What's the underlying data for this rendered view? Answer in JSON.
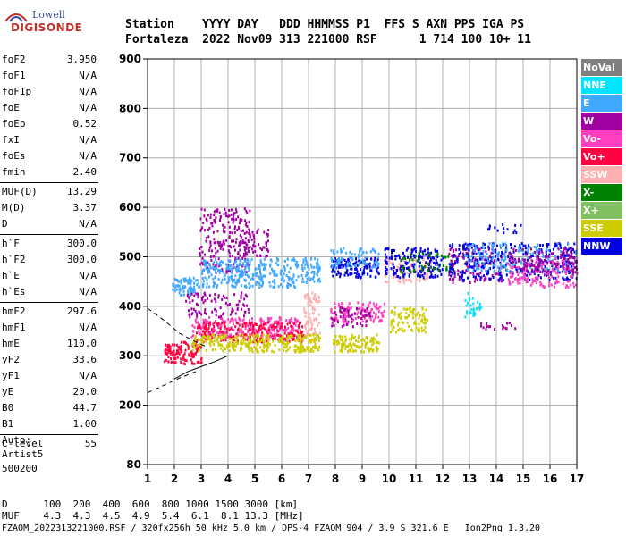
{
  "logo": {
    "top": "Lowell",
    "bottom": "DIGISONDE"
  },
  "header": {
    "row1": "Station    YYYY DAY   DDD HHMMSS P1  FFS S AXN PPS IGA PS",
    "row2": "Fortaleza  2022 Nov09 313 221000 RSF      1 714 100 10+ 11"
  },
  "params": [
    {
      "label": "foF2",
      "value": "3.950"
    },
    {
      "label": "foF1",
      "value": "N/A"
    },
    {
      "label": "foF1p",
      "value": "N/A"
    },
    {
      "label": "foE",
      "value": "N/A"
    },
    {
      "label": "foEp",
      "value": "0.52"
    },
    {
      "label": "fxI",
      "value": "N/A"
    },
    {
      "label": "foEs",
      "value": "N/A"
    },
    {
      "label": "fmin",
      "value": "2.40"
    },
    {
      "label": "MUF(D)",
      "value": "13.29"
    },
    {
      "label": "M(D)",
      "value": "3.37"
    },
    {
      "label": "D",
      "value": "N/A"
    },
    {
      "label": "h`F",
      "value": "300.0"
    },
    {
      "label": "h`F2",
      "value": "300.0"
    },
    {
      "label": "h`E",
      "value": "N/A"
    },
    {
      "label": "h`Es",
      "value": "N/A"
    },
    {
      "label": "hmF2",
      "value": "297.6"
    },
    {
      "label": "hmF1",
      "value": "N/A"
    },
    {
      "label": "hmE",
      "value": "110.0"
    },
    {
      "label": "yF2",
      "value": "33.6"
    },
    {
      "label": "yF1",
      "value": "N/A"
    },
    {
      "label": "yE",
      "value": "20.0"
    },
    {
      "label": "B0",
      "value": "44.7"
    },
    {
      "label": "B1",
      "value": "1.00"
    },
    {
      "label": "C-level",
      "value": "55"
    }
  ],
  "auto": {
    "line1": "Auto:",
    "line2": "Artist5",
    "line3": "500200"
  },
  "legend": [
    {
      "label": "NoVal",
      "color": "#7f7f7f"
    },
    {
      "label": "NNE",
      "color": "#00e5ff"
    },
    {
      "label": "E",
      "color": "#40a8ff"
    },
    {
      "label": "W",
      "color": "#a000a0"
    },
    {
      "label": "Vo-",
      "color": "#ff3fbf"
    },
    {
      "label": "Vo+",
      "color": "#ff0040"
    },
    {
      "label": "SSW",
      "color": "#ffb0b0"
    },
    {
      "label": "X-",
      "color": "#008000"
    },
    {
      "label": "X+",
      "color": "#80c060"
    },
    {
      "label": "SSE",
      "color": "#cccc00"
    },
    {
      "label": "NNW",
      "color": "#0000e0"
    }
  ],
  "bottom": {
    "row_d": "D      100  200  400  600  800 1000 1500 3000 [km]",
    "row_muf": "MUF    4.3  4.3  4.5  4.9  5.4  6.1  8.1 13.3 [MHz]",
    "footer": "FZAOM_2022313221000.RSF / 320fx256h 50 kHz 5.0 km / DPS-4 FZAOM 904 / 3.9 S 321.6 E   Ion2Png 1.3.20"
  },
  "chart_data": {
    "type": "scatter",
    "xlim": [
      1,
      17
    ],
    "ylim": [
      80,
      900
    ],
    "x_ticks": [
      1,
      2,
      3,
      4,
      5,
      6,
      7,
      8,
      9,
      10,
      11,
      12,
      13,
      14,
      15,
      16,
      17
    ],
    "x_tick_labels": [
      "1",
      "2",
      "3",
      "4",
      "5",
      "6",
      "7",
      "8",
      "9",
      "10",
      "11",
      "12",
      "13",
      "14",
      "15",
      "16",
      "17"
    ],
    "y_ticks": [
      80,
      200,
      300,
      400,
      500,
      600,
      700,
      800,
      900
    ],
    "y_tick_labels": [
      "80",
      "200",
      "300",
      "400",
      "500",
      "600",
      "700",
      "800",
      "900"
    ],
    "grid": true,
    "legend_position": "right",
    "clusters": [
      {
        "color": "#40a8ff",
        "x": [
          1.9,
          2.9
        ],
        "y": [
          425,
          460
        ],
        "n": 80
      },
      {
        "color": "#a000a0",
        "x": [
          2.9,
          4.8
        ],
        "y": [
          470,
          600
        ],
        "n": 220
      },
      {
        "color": "#40a8ff",
        "x": [
          3.0,
          5.4
        ],
        "y": [
          440,
          500
        ],
        "n": 220
      },
      {
        "color": "#a000a0",
        "x": [
          4.5,
          5.5
        ],
        "y": [
          500,
          560
        ],
        "n": 60
      },
      {
        "color": "#40a8ff",
        "x": [
          5.5,
          6.6
        ],
        "y": [
          440,
          500
        ],
        "n": 90
      },
      {
        "color": "#ff3fbf",
        "x": [
          2.6,
          6.6
        ],
        "y": [
          340,
          380
        ],
        "n": 250
      },
      {
        "color": "#ff0040",
        "x": [
          1.6,
          3.0
        ],
        "y": [
          285,
          330
        ],
        "n": 120
      },
      {
        "color": "#ff0040",
        "x": [
          2.8,
          6.8
        ],
        "y": [
          330,
          370
        ],
        "n": 200
      },
      {
        "color": "#cccc00",
        "x": [
          2.6,
          6.8
        ],
        "y": [
          310,
          345
        ],
        "n": 250
      },
      {
        "color": "#a000a0",
        "x": [
          2.4,
          4.8
        ],
        "y": [
          380,
          430
        ],
        "n": 90
      },
      {
        "color": "#ffb0b0",
        "x": [
          6.8,
          7.4
        ],
        "y": [
          330,
          430
        ],
        "n": 80
      },
      {
        "color": "#cccc00",
        "x": [
          6.6,
          7.4
        ],
        "y": [
          310,
          345
        ],
        "n": 60
      },
      {
        "color": "#40a8ff",
        "x": [
          6.7,
          7.4
        ],
        "y": [
          450,
          500
        ],
        "n": 60
      },
      {
        "color": "#0000e0",
        "x": [
          7.8,
          9.6
        ],
        "y": [
          460,
          500
        ],
        "n": 120
      },
      {
        "color": "#40a8ff",
        "x": [
          7.8,
          9.6
        ],
        "y": [
          480,
          520
        ],
        "n": 80
      },
      {
        "color": "#ff3fbf",
        "x": [
          7.8,
          9.8
        ],
        "y": [
          370,
          410
        ],
        "n": 110
      },
      {
        "color": "#cccc00",
        "x": [
          7.9,
          9.6
        ],
        "y": [
          310,
          345
        ],
        "n": 120
      },
      {
        "color": "#a000a0",
        "x": [
          7.8,
          9.3
        ],
        "y": [
          360,
          400
        ],
        "n": 60
      },
      {
        "color": "#cccc00",
        "x": [
          10.0,
          11.4
        ],
        "y": [
          350,
          400
        ],
        "n": 100
      },
      {
        "color": "#ffb0b0",
        "x": [
          9.8,
          11.6
        ],
        "y": [
          450,
          500
        ],
        "n": 100
      },
      {
        "color": "#0000e0",
        "x": [
          9.8,
          12.0
        ],
        "y": [
          460,
          520
        ],
        "n": 160
      },
      {
        "color": "#008000",
        "x": [
          10.4,
          12.4
        ],
        "y": [
          470,
          510
        ],
        "n": 50
      },
      {
        "color": "#a000a0",
        "x": [
          12.2,
          14.2
        ],
        "y": [
          450,
          520
        ],
        "n": 120
      },
      {
        "color": "#0000e0",
        "x": [
          12.2,
          17.0
        ],
        "y": [
          455,
          530
        ],
        "n": 320
      },
      {
        "color": "#40a8ff",
        "x": [
          12.8,
          17.0
        ],
        "y": [
          470,
          530
        ],
        "n": 180
      },
      {
        "color": "#ff3fbf",
        "x": [
          14.4,
          17.0
        ],
        "y": [
          440,
          500
        ],
        "n": 140
      },
      {
        "color": "#a000a0",
        "x": [
          14.4,
          17.0
        ],
        "y": [
          470,
          520
        ],
        "n": 120
      },
      {
        "color": "#00e5ff",
        "x": [
          12.8,
          13.4
        ],
        "y": [
          380,
          430
        ],
        "n": 30
      },
      {
        "color": "#a000a0",
        "x": [
          13.4,
          14.8
        ],
        "y": [
          355,
          370
        ],
        "n": 20
      },
      {
        "color": "#0000e0",
        "x": [
          13.4,
          15.0
        ],
        "y": [
          550,
          570
        ],
        "n": 15
      }
    ],
    "lines": [
      {
        "name": "profile",
        "color": "#000000",
        "dash": false,
        "points": [
          [
            2.0,
            253
          ],
          [
            2.5,
            268
          ],
          [
            3.0,
            278
          ],
          [
            3.5,
            288
          ],
          [
            4.0,
            300
          ]
        ]
      },
      {
        "name": "upper-branch",
        "color": "#000000",
        "dash": true,
        "points": [
          [
            1.0,
            396
          ],
          [
            1.6,
            372
          ],
          [
            2.2,
            345
          ],
          [
            2.8,
            328
          ],
          [
            3.2,
            318
          ]
        ]
      },
      {
        "name": "lower-branch",
        "color": "#000000",
        "dash": true,
        "points": [
          [
            1.0,
            225
          ],
          [
            1.6,
            240
          ],
          [
            2.2,
            255
          ],
          [
            2.8,
            268
          ]
        ]
      }
    ]
  }
}
